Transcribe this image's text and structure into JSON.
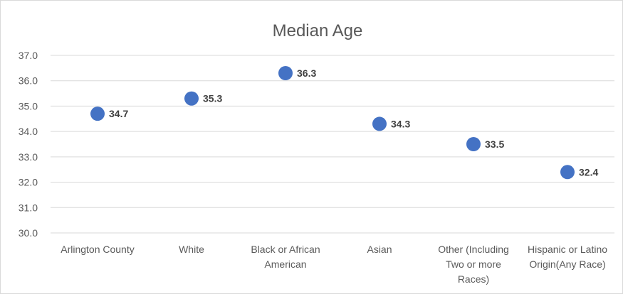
{
  "chart_data": {
    "type": "scatter",
    "title": "Median Age",
    "xlabel": "",
    "ylabel": "",
    "categories": [
      "Arlington County",
      "White",
      "Black or African American",
      "Asian",
      "Other (Including Two or more Races)",
      "Hispanic or Latino Origin(Any Race)"
    ],
    "category_lines": [
      [
        "Arlington County"
      ],
      [
        "White"
      ],
      [
        "Black or African",
        "American"
      ],
      [
        "Asian"
      ],
      [
        "Other (Including",
        "Two or more",
        "Races)"
      ],
      [
        "Hispanic or Latino",
        "Origin(Any Race)"
      ]
    ],
    "values": [
      34.7,
      35.3,
      36.3,
      34.3,
      33.5,
      32.4
    ],
    "value_labels": [
      "34.7",
      "35.3",
      "36.3",
      "34.3",
      "33.5",
      "32.4"
    ],
    "ylim": [
      30.0,
      37.0
    ],
    "yticks": [
      "30.0",
      "31.0",
      "32.0",
      "33.0",
      "34.0",
      "35.0",
      "36.0",
      "37.0"
    ],
    "grid": true,
    "legend": "none",
    "colors": {
      "marker": "#4472c4",
      "grid": "#d9d9d9"
    }
  }
}
